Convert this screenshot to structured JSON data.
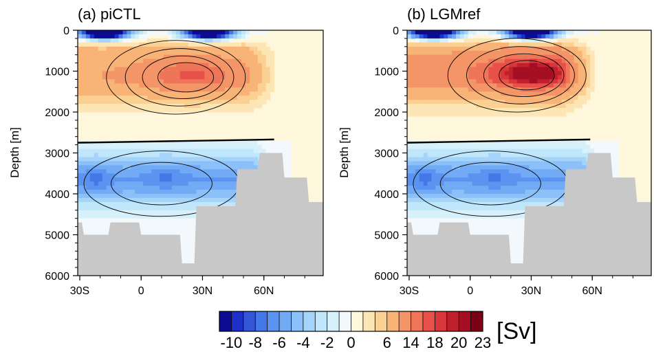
{
  "chart_data": [
    {
      "type": "heatmap",
      "title": "(a) piCTL",
      "ylabel": "Depth [m]",
      "xlabel": "",
      "x_ticks": [
        "30S",
        "0",
        "30N",
        "60N"
      ],
      "x_tick_values": [
        -30,
        0,
        30,
        60
      ],
      "xlim": [
        -31,
        89
      ],
      "y_ticks": [
        "0",
        "1000",
        "2000",
        "3000",
        "4000",
        "5000",
        "6000"
      ],
      "y_tick_values": [
        0,
        1000,
        2000,
        3000,
        4000,
        5000,
        6000
      ],
      "ylim": [
        0,
        6000
      ],
      "y_reversed": true,
      "upper_cell": {
        "peak_sv": 16,
        "core_lat": 25,
        "core_depth": 1100,
        "lat_range": [
          -31,
          63
        ],
        "lower_boundary_depth": 2750
      },
      "abyssal_cell": {
        "peak_sv": -6,
        "lat_range": [
          -31,
          55
        ],
        "depth_range": [
          2750,
          4800
        ]
      },
      "surface_cells": [
        {
          "peak_sv": -10,
          "lat": -18,
          "depth": 60
        },
        {
          "peak_sv": -10,
          "lat": 33,
          "depth": 60
        }
      ],
      "bathymetry": [
        {
          "lat": -31,
          "depth": 4700
        },
        {
          "lat": -28,
          "depth": 4700
        },
        {
          "lat": -28,
          "depth": 5000
        },
        {
          "lat": -15,
          "depth": 5000
        },
        {
          "lat": -15,
          "depth": 4700
        },
        {
          "lat": 0,
          "depth": 4700
        },
        {
          "lat": 0,
          "depth": 5000
        },
        {
          "lat": 20,
          "depth": 5000
        },
        {
          "lat": 20,
          "depth": 5700
        },
        {
          "lat": 27,
          "depth": 5700
        },
        {
          "lat": 27,
          "depth": 4300
        },
        {
          "lat": 47,
          "depth": 4300
        },
        {
          "lat": 47,
          "depth": 3400
        },
        {
          "lat": 58,
          "depth": 3400
        },
        {
          "lat": 58,
          "depth": 3000
        },
        {
          "lat": 70,
          "depth": 3000
        },
        {
          "lat": 70,
          "depth": 3600
        },
        {
          "lat": 82,
          "depth": 3600
        },
        {
          "lat": 82,
          "depth": 4200
        },
        {
          "lat": 89,
          "depth": 4200
        }
      ]
    },
    {
      "type": "heatmap",
      "title": "(b) LGMref",
      "ylabel": "Depth [m]",
      "xlabel": "",
      "x_ticks": [
        "30S",
        "0",
        "30N",
        "60N"
      ],
      "x_tick_values": [
        -30,
        0,
        30,
        60
      ],
      "xlim": [
        -31,
        89
      ],
      "y_ticks": [
        "0",
        "1000",
        "2000",
        "3000",
        "4000",
        "5000",
        "6000"
      ],
      "y_tick_values": [
        0,
        1000,
        2000,
        3000,
        4000,
        5000,
        6000
      ],
      "ylim": [
        0,
        6000
      ],
      "y_reversed": true,
      "upper_cell": {
        "peak_sv": 21,
        "core_lat": 31,
        "core_depth": 1050,
        "lat_range": [
          -31,
          57
        ],
        "lower_boundary_depth": 2750
      },
      "abyssal_cell": {
        "peak_sv": -6,
        "lat_range": [
          -31,
          55
        ],
        "depth_range": [
          2750,
          4900
        ]
      },
      "surface_cells": [
        {
          "peak_sv": -10,
          "lat": -18,
          "depth": 60
        },
        {
          "peak_sv": -10,
          "lat": 30,
          "depth": 60
        }
      ],
      "bathymetry": [
        {
          "lat": -31,
          "depth": 4700
        },
        {
          "lat": -28,
          "depth": 4700
        },
        {
          "lat": -28,
          "depth": 5000
        },
        {
          "lat": -15,
          "depth": 5000
        },
        {
          "lat": -15,
          "depth": 4700
        },
        {
          "lat": 0,
          "depth": 4700
        },
        {
          "lat": 0,
          "depth": 5000
        },
        {
          "lat": 20,
          "depth": 5000
        },
        {
          "lat": 20,
          "depth": 5700
        },
        {
          "lat": 27,
          "depth": 5700
        },
        {
          "lat": 27,
          "depth": 4300
        },
        {
          "lat": 47,
          "depth": 4300
        },
        {
          "lat": 47,
          "depth": 3400
        },
        {
          "lat": 58,
          "depth": 3400
        },
        {
          "lat": 58,
          "depth": 3000
        },
        {
          "lat": 70,
          "depth": 3000
        },
        {
          "lat": 70,
          "depth": 3600
        },
        {
          "lat": 82,
          "depth": 3600
        },
        {
          "lat": 82,
          "depth": 4200
        },
        {
          "lat": 89,
          "depth": 4200
        }
      ]
    }
  ],
  "colorbar": {
    "unit": "[Sv]",
    "labels": [
      "-10",
      "-8",
      "-6",
      "-4",
      "-2",
      "0",
      "6",
      "14",
      "18",
      "20",
      "23"
    ],
    "levels": [
      -10,
      -9,
      -8,
      -7,
      -6,
      -5,
      -4,
      -3,
      -2,
      -1,
      0,
      2,
      4,
      6,
      10,
      14,
      16,
      18,
      19,
      20,
      22,
      23
    ],
    "colors": [
      "#0d0b8f",
      "#1c2fc9",
      "#3355d8",
      "#4477e8",
      "#5b93f0",
      "#73aaf5",
      "#8cc0f8",
      "#a5d4fa",
      "#bfe6fb",
      "#d7f1fb",
      "#f2f8fb",
      "#fff7dc",
      "#fde6b6",
      "#fbd193",
      "#f8b376",
      "#f39567",
      "#ee7557",
      "#e75149",
      "#d9363b",
      "#c0202c",
      "#a40f24",
      "#7a0016"
    ]
  },
  "grey_land_color": "#c8c8c8"
}
